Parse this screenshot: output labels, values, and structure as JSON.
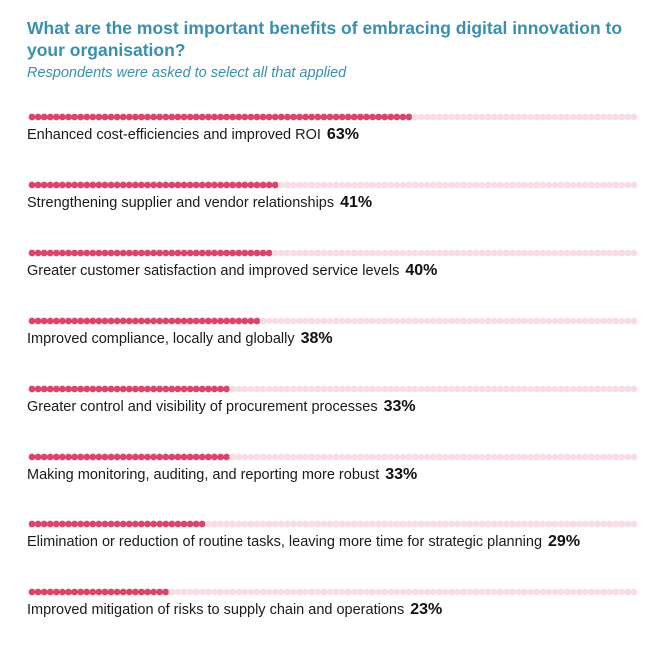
{
  "title": "What are the most important benefits of embracing digital innovation to your organisation?",
  "subtitle": "Respondents were asked to select all that applied",
  "colors": {
    "title": "#3a8fb0",
    "filled_dot": "#d9466a",
    "empty_dot": "#f8dde4"
  },
  "chart_data": {
    "type": "bar",
    "title": "What are the most important benefits of embracing digital innovation to your organisation?",
    "subtitle": "Respondents were asked to select all that applied",
    "xlabel": "",
    "ylabel": "",
    "ylim": [
      0,
      100
    ],
    "orientation": "horizontal",
    "categories": [
      "Enhanced cost-efficiencies and improved ROI",
      "Strengthening supplier and vendor relationships",
      "Greater customer satisfaction and improved service levels",
      "Improved compliance, locally and globally",
      "Greater control and visibility of procurement processes",
      "Making monitoring, auditing, and reporting more robust",
      "Elimination or reduction of routine tasks, leaving more time for strategic planning",
      "Improved mitigation of risks to supply chain and operations"
    ],
    "values": [
      63,
      41,
      40,
      38,
      33,
      33,
      29,
      23
    ],
    "value_labels": [
      "63%",
      "41%",
      "40%",
      "38%",
      "33%",
      "33%",
      "29%",
      "23%"
    ],
    "grid": false,
    "legend": "none"
  }
}
